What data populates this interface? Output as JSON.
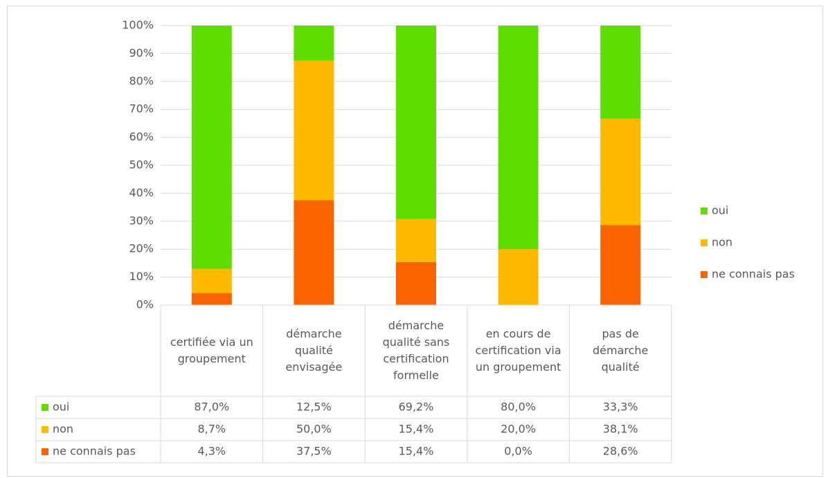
{
  "chart_data": {
    "type": "stacked_bar",
    "categories": [
      "certifiée via un groupement",
      "démarche qualité envisagée",
      "démarche qualité sans certification formelle",
      "en cours de certification via un groupement",
      "pas de démarche qualité"
    ],
    "series": [
      {
        "name": "oui",
        "color": "#5fdc00",
        "values": [
          87.0,
          12.5,
          69.2,
          80.0,
          33.3
        ],
        "value_labels": [
          "87,0%",
          "12,5%",
          "69,2%",
          "80,0%",
          "33,3%"
        ]
      },
      {
        "name": "non",
        "color": "#ffb900",
        "values": [
          8.7,
          50.0,
          15.4,
          20.0,
          38.1
        ],
        "value_labels": [
          "8,7%",
          "50,0%",
          "15,4%",
          "20,0%",
          "38,1%"
        ]
      },
      {
        "name": "ne connais pas",
        "color": "#fa6400",
        "values": [
          4.3,
          37.5,
          15.4,
          0.0,
          28.6
        ],
        "value_labels": [
          "4,3%",
          "37,5%",
          "15,4%",
          "0,0%",
          "28,6%"
        ]
      }
    ],
    "ylim": [
      0,
      100
    ],
    "yticks": [
      {
        "value": 0,
        "label": "0%"
      },
      {
        "value": 10,
        "label": "10%"
      },
      {
        "value": 20,
        "label": "20%"
      },
      {
        "value": 30,
        "label": "30%"
      },
      {
        "value": 40,
        "label": "40%"
      },
      {
        "value": 50,
        "label": "50%"
      },
      {
        "value": 60,
        "label": "60%"
      },
      {
        "value": 70,
        "label": "70%"
      },
      {
        "value": 80,
        "label": "80%"
      },
      {
        "value": 90,
        "label": "90%"
      },
      {
        "value": 100,
        "label": "100%"
      }
    ],
    "grid": true,
    "legend": "right",
    "data_table": true
  }
}
